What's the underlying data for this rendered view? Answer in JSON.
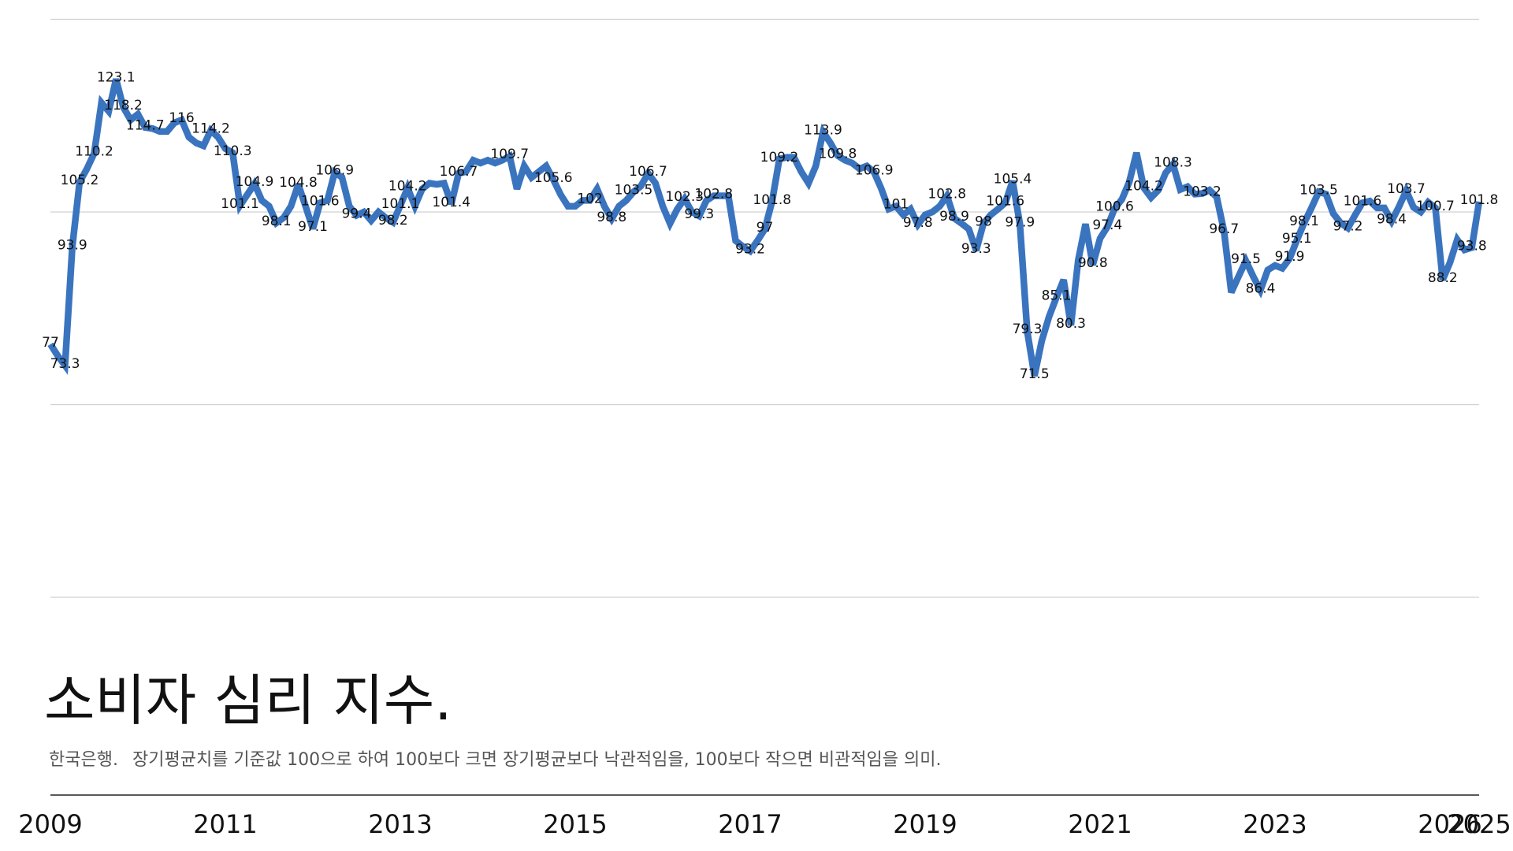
{
  "chart_data": {
    "type": "line",
    "title": "소비자 심리 지수.",
    "source": "한국은행.",
    "subtitle": "장기평균치를 기준값 100으로 하여 100보다 크면 장기평균보다 낙관적임을, 100보다 작으면 비관적임을 의미.",
    "color": "#3a74bf",
    "ylim": [
      33,
      133.5
    ],
    "yticks": [
      33,
      66.5,
      100,
      133.5
    ],
    "grid": true,
    "categories": [
      "2009",
      null,
      null,
      null,
      null,
      null,
      null,
      null,
      null,
      null,
      null,
      null,
      null,
      null,
      null,
      null,
      null,
      null,
      null,
      null,
      null,
      null,
      null,
      null,
      "2011",
      null,
      null,
      null,
      null,
      null,
      null,
      null,
      null,
      null,
      null,
      null,
      null,
      null,
      null,
      null,
      null,
      null,
      null,
      null,
      null,
      null,
      null,
      null,
      "2013",
      null,
      null,
      null,
      null,
      null,
      null,
      null,
      null,
      null,
      null,
      null,
      null,
      null,
      null,
      null,
      null,
      null,
      null,
      null,
      null,
      null,
      null,
      null,
      "2015",
      null,
      null,
      null,
      null,
      null,
      null,
      null,
      null,
      null,
      null,
      null,
      null,
      null,
      null,
      null,
      null,
      null,
      null,
      null,
      null,
      null,
      null,
      null,
      "2017",
      null,
      null,
      null,
      null,
      null,
      null,
      null,
      null,
      null,
      null,
      null,
      null,
      null,
      null,
      null,
      null,
      null,
      null,
      null,
      null,
      null,
      null,
      null,
      "2019",
      null,
      null,
      null,
      null,
      null,
      null,
      null,
      null,
      null,
      null,
      null,
      null,
      null,
      null,
      null,
      null,
      null,
      null,
      null,
      null,
      null,
      null,
      null,
      "2021",
      null,
      null,
      null,
      null,
      null,
      null,
      null,
      null,
      null,
      null,
      null,
      null,
      null,
      null,
      null,
      null,
      null,
      null,
      null,
      null,
      null,
      null,
      null,
      "2023",
      null,
      null,
      null,
      null,
      null,
      null,
      null,
      null,
      null,
      null,
      null,
      null,
      null,
      null,
      null,
      null,
      null,
      null,
      null,
      null,
      null,
      null,
      null,
      "2026",
      null,
      null,
      null,
      "2025"
    ],
    "values": [
      77,
      75,
      73.3,
      93.9,
      105.2,
      107.5,
      110.2,
      119,
      117.5,
      123.1,
      118.2,
      116,
      117,
      114.7,
      114.5,
      114,
      114,
      115.5,
      116,
      113,
      112,
      111.5,
      114.2,
      113,
      111,
      110.3,
      101.1,
      103,
      104.9,
      102,
      101,
      98.1,
      99,
      101,
      104.8,
      101,
      97.1,
      101.6,
      102,
      106.9,
      106,
      101,
      99.4,
      100,
      98.5,
      100,
      99,
      98.2,
      101.1,
      104.2,
      101,
      104,
      105,
      104.8,
      105,
      101.4,
      106.7,
      107,
      109,
      108.5,
      109,
      108.5,
      109,
      109.7,
      104,
      108,
      106,
      107,
      108,
      105.6,
      103,
      101,
      101,
      102,
      102,
      104,
      101,
      98.8,
      101,
      102,
      103.5,
      104.5,
      106.7,
      105,
      101,
      98,
      100.5,
      102.3,
      100,
      99.3,
      102,
      102.8,
      102.8,
      102.8,
      95,
      94,
      93.2,
      95,
      97,
      101.8,
      109.2,
      109.5,
      109.5,
      107,
      105,
      108,
      113.9,
      112,
      109.8,
      109,
      108.5,
      107.5,
      108,
      106.9,
      104,
      100.5,
      101,
      99.5,
      100.5,
      97.8,
      99.5,
      100,
      101,
      102.8,
      98.9,
      98,
      97,
      93.3,
      98,
      99.5,
      100.5,
      101.6,
      105.4,
      97.9,
      79.3,
      71.5,
      77.6,
      81.8,
      85.1,
      88.2,
      80.3,
      91.6,
      97.9,
      90.8,
      95.4,
      97.4,
      100.6,
      102.2,
      105.2,
      110.3,
      104.2,
      102.5,
      103.8,
      106.8,
      108.3,
      103.9,
      104.4,
      103.1,
      103.2,
      103.8,
      102.6,
      96.7,
      86,
      88.8,
      91.5,
      88.8,
      86.4,
      89.9,
      90.7,
      90.2,
      91.9,
      95.1,
      98.1,
      100.7,
      103.5,
      103.1,
      99.7,
      98.1,
      97.2,
      99.5,
      101.6,
      101.9,
      100.7,
      100.7,
      98.4,
      100.9,
      103.7,
      100.8,
      100,
      101.7,
      100.7,
      88.2,
      91.2,
      95.2,
      93.4,
      93.8,
      101.8
    ],
    "value_labels": [
      "77",
      null,
      "73.3",
      "93.9",
      "105.2",
      null,
      "110.2",
      null,
      null,
      "123.1",
      "118.2",
      null,
      null,
      "114.7",
      null,
      null,
      null,
      null,
      "116",
      null,
      null,
      null,
      "114.2",
      null,
      null,
      "110.3",
      "101.1",
      null,
      "104.9",
      null,
      null,
      "98.1",
      null,
      null,
      "104.8",
      null,
      "97.1",
      "101.6",
      null,
      "106.9",
      null,
      null,
      "99.4",
      null,
      null,
      null,
      null,
      "98.2",
      "101.1",
      "104.2",
      null,
      null,
      null,
      null,
      null,
      "101.4",
      "106.7",
      null,
      null,
      null,
      null,
      null,
      null,
      "109.7",
      null,
      null,
      null,
      null,
      null,
      "105.6",
      null,
      null,
      null,
      null,
      "102",
      null,
      null,
      "98.8",
      null,
      null,
      "103.5",
      null,
      "106.7",
      null,
      null,
      null,
      null,
      "102.3",
      null,
      "99.3",
      null,
      "102.8",
      null,
      null,
      null,
      null,
      "93.2",
      null,
      "97",
      "101.8",
      "109.2",
      null,
      null,
      null,
      null,
      null,
      "113.9",
      null,
      "109.8",
      null,
      null,
      null,
      null,
      "106.9",
      null,
      null,
      "101",
      null,
      null,
      "97.8",
      null,
      null,
      null,
      "102.8",
      "98.9",
      null,
      null,
      "93.3",
      "98",
      null,
      null,
      "101.6",
      "105.4",
      "97.9",
      "79.3",
      "71.5",
      null,
      null,
      "85.1",
      null,
      "80.3",
      null,
      null,
      "90.8",
      null,
      "97.4",
      "100.6",
      null,
      null,
      null,
      "104.2",
      null,
      null,
      null,
      "108.3",
      null,
      null,
      null,
      "103.2",
      null,
      null,
      "96.7",
      null,
      null,
      "91.5",
      null,
      "86.4",
      null,
      null,
      null,
      "91.9",
      "95.1",
      "98.1",
      null,
      "103.5",
      null,
      null,
      null,
      "97.2",
      null,
      "101.6",
      null,
      null,
      null,
      "98.4",
      null,
      "103.7",
      null,
      null,
      null,
      "100.7",
      "88.2",
      null,
      null,
      null,
      "93.8",
      "101.8"
    ]
  }
}
